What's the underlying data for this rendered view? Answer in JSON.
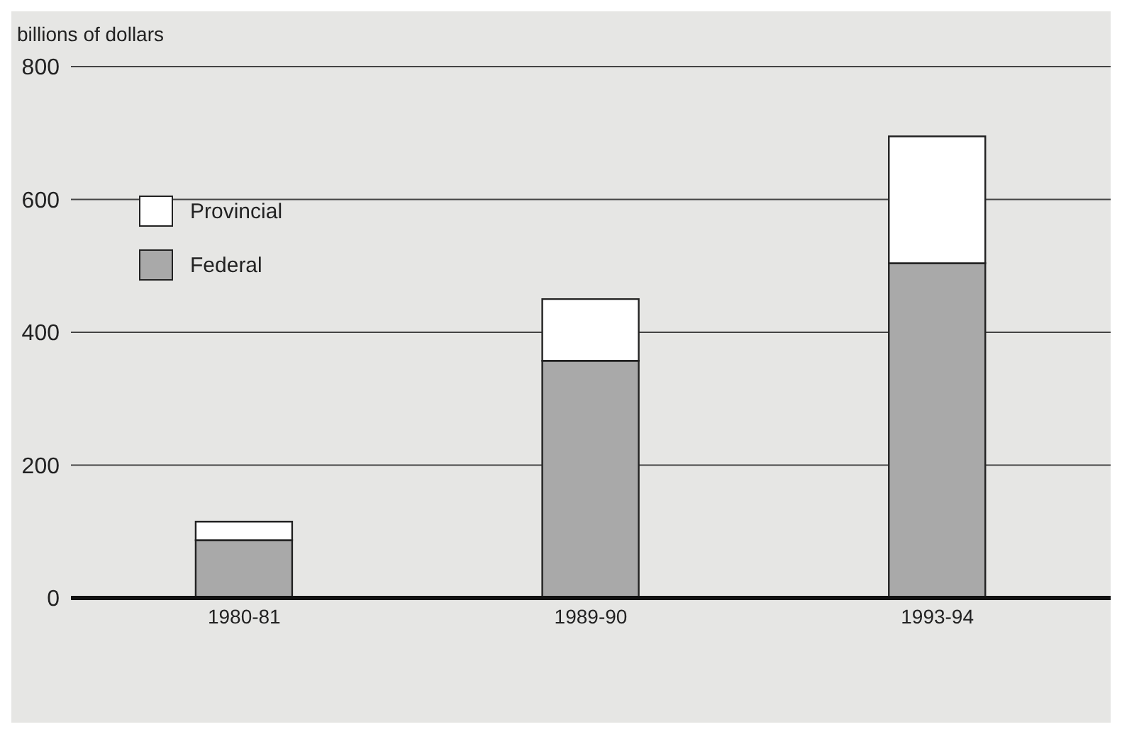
{
  "chart_data": {
    "type": "bar",
    "ylabel": "billions of dollars",
    "categories": [
      "1980-81",
      "1989-90",
      "1993-94"
    ],
    "stacked": true,
    "series": [
      {
        "name": "Federal",
        "color": "#a9a9a9",
        "values": [
          87,
          357,
          504
        ]
      },
      {
        "name": "Provincial",
        "color": "#ffffff",
        "values": [
          28,
          93,
          191
        ]
      }
    ],
    "ylim": [
      0,
      800
    ],
    "yticks": [
      0,
      200,
      400,
      600,
      800
    ],
    "grid": "y",
    "legend": "top left"
  }
}
